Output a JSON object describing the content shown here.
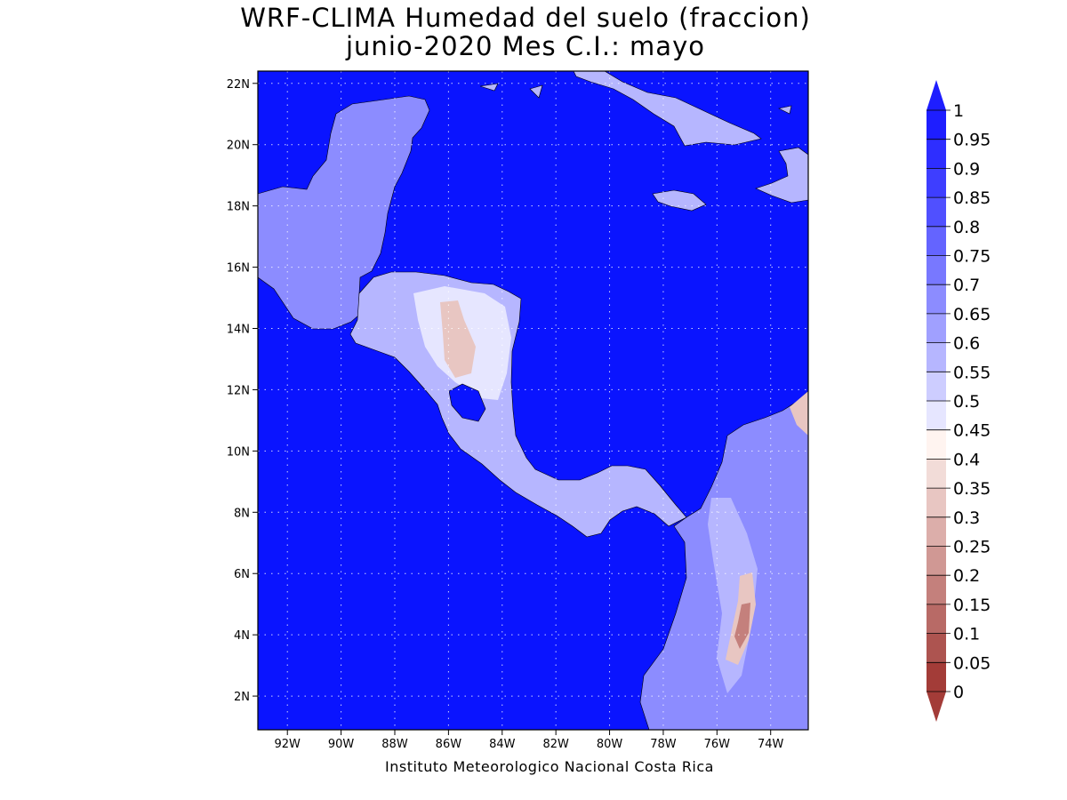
{
  "title": {
    "line1": "WRF-CLIMA Humedad del suelo (fraccion)",
    "line2": "junio-2020 Mes C.I.: mayo"
  },
  "credit": "Instituto Meteorologico Nacional Costa Rica",
  "axes": {
    "lon_ticks": [
      "92W",
      "90W",
      "88W",
      "86W",
      "84W",
      "82W",
      "80W",
      "78W",
      "76W",
      "74W"
    ],
    "lat_ticks": [
      "22N",
      "20N",
      "18N",
      "16N",
      "14N",
      "12N",
      "10N",
      "8N",
      "6N",
      "4N",
      "2N"
    ],
    "lon_range": [
      -93.1,
      -72.6
    ],
    "lat_range": [
      0.9,
      22.4
    ],
    "grid": "dotted"
  },
  "colorbar": {
    "labels": [
      "1",
      "0.95",
      "0.9",
      "0.85",
      "0.8",
      "0.75",
      "0.7",
      "0.65",
      "0.6",
      "0.55",
      "0.5",
      "0.45",
      "0.4",
      "0.35",
      "0.3",
      "0.25",
      "0.2",
      "0.15",
      "0.1",
      "0.05",
      "0"
    ],
    "colors_top_to_bottom": [
      "#1e1eff",
      "#2e2eff",
      "#3e3eff",
      "#5050ff",
      "#6464ff",
      "#7878ff",
      "#8c8cff",
      "#a0a0ff",
      "#b6b6ff",
      "#cdcdff",
      "#e6e6ff",
      "#fff4f0",
      "#f2dcd8",
      "#e8c6c2",
      "#dcaeaa",
      "#d09894",
      "#c4807c",
      "#b86a66",
      "#ad5450",
      "#a33c38"
    ],
    "cap_top_color": "#1e1eff",
    "cap_bottom_color": "#a33c38"
  },
  "map_colors": {
    "ocean": "#0a14ff",
    "land_wet": "#8c8cff",
    "land_mid": "#b6b6ff",
    "land_dry": "#e6e6ff",
    "land_very_dry": "#e8c6c2",
    "land_driest": "#c4807c"
  }
}
